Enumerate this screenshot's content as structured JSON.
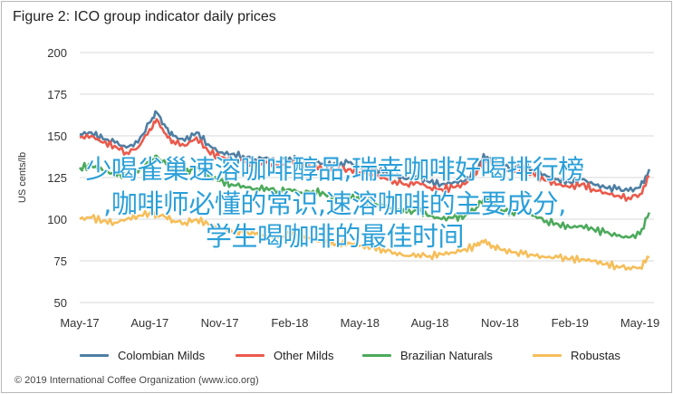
{
  "title": "Figure 2: ICO group indicator daily prices",
  "copyright": "© 2019 International Coffee Organization (www.ico.org)",
  "overlay_lines": [
    "少喝雀巢速溶咖啡醇品,瑞幸咖啡好喝排行榜",
    ",咖啡师必懂的常识,速溶咖啡的主要成分,",
    "学生喝咖啡的最佳时间"
  ],
  "chart_data": {
    "type": "line",
    "title": "Figure 2: ICO group indicator daily prices",
    "xlabel": "",
    "ylabel": "US cents/lb",
    "ylim": [
      50,
      200
    ],
    "yticks": [
      50,
      75,
      100,
      125,
      150,
      175,
      200
    ],
    "xlim": [
      0,
      24.6
    ],
    "xticks": [
      {
        "t": 0,
        "label": "May-17"
      },
      {
        "t": 3,
        "label": "Aug-17"
      },
      {
        "t": 6,
        "label": "Nov-17"
      },
      {
        "t": 9,
        "label": "Feb-18"
      },
      {
        "t": 12,
        "label": "May-18"
      },
      {
        "t": 15,
        "label": "Aug-18"
      },
      {
        "t": 18,
        "label": "Nov-18"
      },
      {
        "t": 21,
        "label": "Feb-19"
      },
      {
        "t": 24,
        "label": "May-19"
      }
    ],
    "grid": true,
    "legend_position": "bottom",
    "series": [
      {
        "name": "Colombian Milds",
        "color": "#4e7fa3",
        "points": [
          [
            0,
            151
          ],
          [
            0.5,
            152
          ],
          [
            1,
            148
          ],
          [
            1.5,
            146
          ],
          [
            2,
            143
          ],
          [
            2.5,
            146
          ],
          [
            3,
            158
          ],
          [
            3.3,
            164
          ],
          [
            3.7,
            155
          ],
          [
            4,
            150
          ],
          [
            4.5,
            147
          ],
          [
            5,
            152
          ],
          [
            5.5,
            145
          ],
          [
            6,
            140
          ],
          [
            6.5,
            139
          ],
          [
            7,
            138
          ],
          [
            7.5,
            136
          ],
          [
            8,
            137
          ],
          [
            8.5,
            135
          ],
          [
            9,
            137
          ],
          [
            9.5,
            134
          ],
          [
            10,
            135
          ],
          [
            10.5,
            133
          ],
          [
            11,
            132
          ],
          [
            11.5,
            134
          ],
          [
            12,
            131
          ],
          [
            12.5,
            130
          ],
          [
            13,
            128
          ],
          [
            13.5,
            126
          ],
          [
            14,
            124
          ],
          [
            14.5,
            125
          ],
          [
            15,
            122
          ],
          [
            15.5,
            121
          ],
          [
            16,
            122
          ],
          [
            16.5,
            123
          ],
          [
            17,
            129
          ],
          [
            17.3,
            139
          ],
          [
            17.7,
            135
          ],
          [
            18,
            133
          ],
          [
            18.5,
            131
          ],
          [
            19,
            132
          ],
          [
            19.5,
            129
          ],
          [
            20,
            126
          ],
          [
            20.5,
            124
          ],
          [
            21,
            122
          ],
          [
            21.5,
            124
          ],
          [
            22,
            121
          ],
          [
            22.5,
            119
          ],
          [
            23,
            118
          ],
          [
            23.5,
            117
          ],
          [
            24,
            119
          ],
          [
            24.4,
            130
          ]
        ]
      },
      {
        "name": "Other Milds",
        "color": "#ea5a4c",
        "points": [
          [
            0,
            149
          ],
          [
            0.5,
            150
          ],
          [
            1,
            146
          ],
          [
            1.5,
            144
          ],
          [
            2,
            140
          ],
          [
            2.5,
            143
          ],
          [
            3,
            154
          ],
          [
            3.3,
            160
          ],
          [
            3.7,
            151
          ],
          [
            4,
            147
          ],
          [
            4.5,
            144
          ],
          [
            5,
            149
          ],
          [
            5.5,
            141
          ],
          [
            6,
            137
          ],
          [
            6.5,
            136
          ],
          [
            7,
            135
          ],
          [
            7.5,
            133
          ],
          [
            8,
            134
          ],
          [
            8.5,
            132
          ],
          [
            9,
            134
          ],
          [
            9.5,
            131
          ],
          [
            10,
            132
          ],
          [
            10.5,
            130
          ],
          [
            11,
            129
          ],
          [
            11.5,
            130
          ],
          [
            12,
            128
          ],
          [
            12.5,
            127
          ],
          [
            13,
            125
          ],
          [
            13.5,
            123
          ],
          [
            14,
            121
          ],
          [
            14.5,
            122
          ],
          [
            15,
            119
          ],
          [
            15.5,
            118
          ],
          [
            16,
            119
          ],
          [
            16.5,
            121
          ],
          [
            17,
            127
          ],
          [
            17.3,
            136
          ],
          [
            17.7,
            133
          ],
          [
            18,
            130
          ],
          [
            18.5,
            128
          ],
          [
            19,
            129
          ],
          [
            19.5,
            126
          ],
          [
            20,
            123
          ],
          [
            20.5,
            121
          ],
          [
            21,
            119
          ],
          [
            21.5,
            121
          ],
          [
            22,
            118
          ],
          [
            22.5,
            116
          ],
          [
            23,
            114
          ],
          [
            23.5,
            113
          ],
          [
            24,
            115
          ],
          [
            24.4,
            126
          ]
        ]
      },
      {
        "name": "Brazilian Naturals",
        "color": "#4caa5c",
        "points": [
          [
            0,
            131
          ],
          [
            0.5,
            132
          ],
          [
            1,
            129
          ],
          [
            1.5,
            127
          ],
          [
            2,
            126
          ],
          [
            2.5,
            128
          ],
          [
            3,
            135
          ],
          [
            3.3,
            138
          ],
          [
            3.7,
            133
          ],
          [
            4,
            130
          ],
          [
            4.5,
            128
          ],
          [
            5,
            131
          ],
          [
            5.5,
            126
          ],
          [
            6,
            123
          ],
          [
            6.5,
            121
          ],
          [
            7,
            120
          ],
          [
            7.5,
            118
          ],
          [
            8,
            119
          ],
          [
            8.5,
            117
          ],
          [
            9,
            118
          ],
          [
            9.5,
            116
          ],
          [
            10,
            117
          ],
          [
            10.5,
            115
          ],
          [
            11,
            113
          ],
          [
            11.5,
            114
          ],
          [
            12,
            112
          ],
          [
            12.5,
            110
          ],
          [
            13,
            108
          ],
          [
            13.5,
            106
          ],
          [
            14,
            104
          ],
          [
            14.5,
            105
          ],
          [
            15,
            102
          ],
          [
            15.5,
            100
          ],
          [
            16,
            101
          ],
          [
            16.5,
            102
          ],
          [
            17,
            107
          ],
          [
            17.3,
            112
          ],
          [
            17.7,
            109
          ],
          [
            18,
            106
          ],
          [
            18.5,
            104
          ],
          [
            19,
            105
          ],
          [
            19.5,
            102
          ],
          [
            20,
            99
          ],
          [
            20.5,
            97
          ],
          [
            21,
            95
          ],
          [
            21.5,
            96
          ],
          [
            22,
            94
          ],
          [
            22.5,
            92
          ],
          [
            23,
            90
          ],
          [
            23.5,
            89
          ],
          [
            24,
            91
          ],
          [
            24.4,
            104
          ]
        ]
      },
      {
        "name": "Robustas",
        "color": "#f6be5a",
        "points": [
          [
            0,
            100
          ],
          [
            0.5,
            101
          ],
          [
            1,
            99
          ],
          [
            1.5,
            98
          ],
          [
            2,
            100
          ],
          [
            2.5,
            102
          ],
          [
            3,
            104
          ],
          [
            3.3,
            103
          ],
          [
            3.7,
            101
          ],
          [
            4,
            99
          ],
          [
            4.5,
            98
          ],
          [
            5,
            100
          ],
          [
            5.5,
            97
          ],
          [
            6,
            95
          ],
          [
            6.5,
            93
          ],
          [
            7,
            92
          ],
          [
            7.5,
            91
          ],
          [
            8,
            90
          ],
          [
            8.5,
            89
          ],
          [
            9,
            91
          ],
          [
            9.5,
            89
          ],
          [
            10,
            88
          ],
          [
            10.5,
            86
          ],
          [
            11,
            85
          ],
          [
            11.5,
            86
          ],
          [
            12,
            84
          ],
          [
            12.5,
            83
          ],
          [
            13,
            82
          ],
          [
            13.5,
            80
          ],
          [
            14,
            78
          ],
          [
            14.5,
            79
          ],
          [
            15,
            78
          ],
          [
            15.5,
            79
          ],
          [
            16,
            80
          ],
          [
            16.5,
            82
          ],
          [
            17,
            84
          ],
          [
            17.3,
            86
          ],
          [
            17.7,
            84
          ],
          [
            18,
            82
          ],
          [
            18.5,
            80
          ],
          [
            19,
            79
          ],
          [
            19.5,
            78
          ],
          [
            20,
            77
          ],
          [
            20.5,
            77
          ],
          [
            21,
            76
          ],
          [
            21.5,
            76
          ],
          [
            22,
            75
          ],
          [
            22.5,
            73
          ],
          [
            23,
            72
          ],
          [
            23.5,
            71
          ],
          [
            24,
            71
          ],
          [
            24.4,
            77
          ]
        ]
      }
    ]
  }
}
